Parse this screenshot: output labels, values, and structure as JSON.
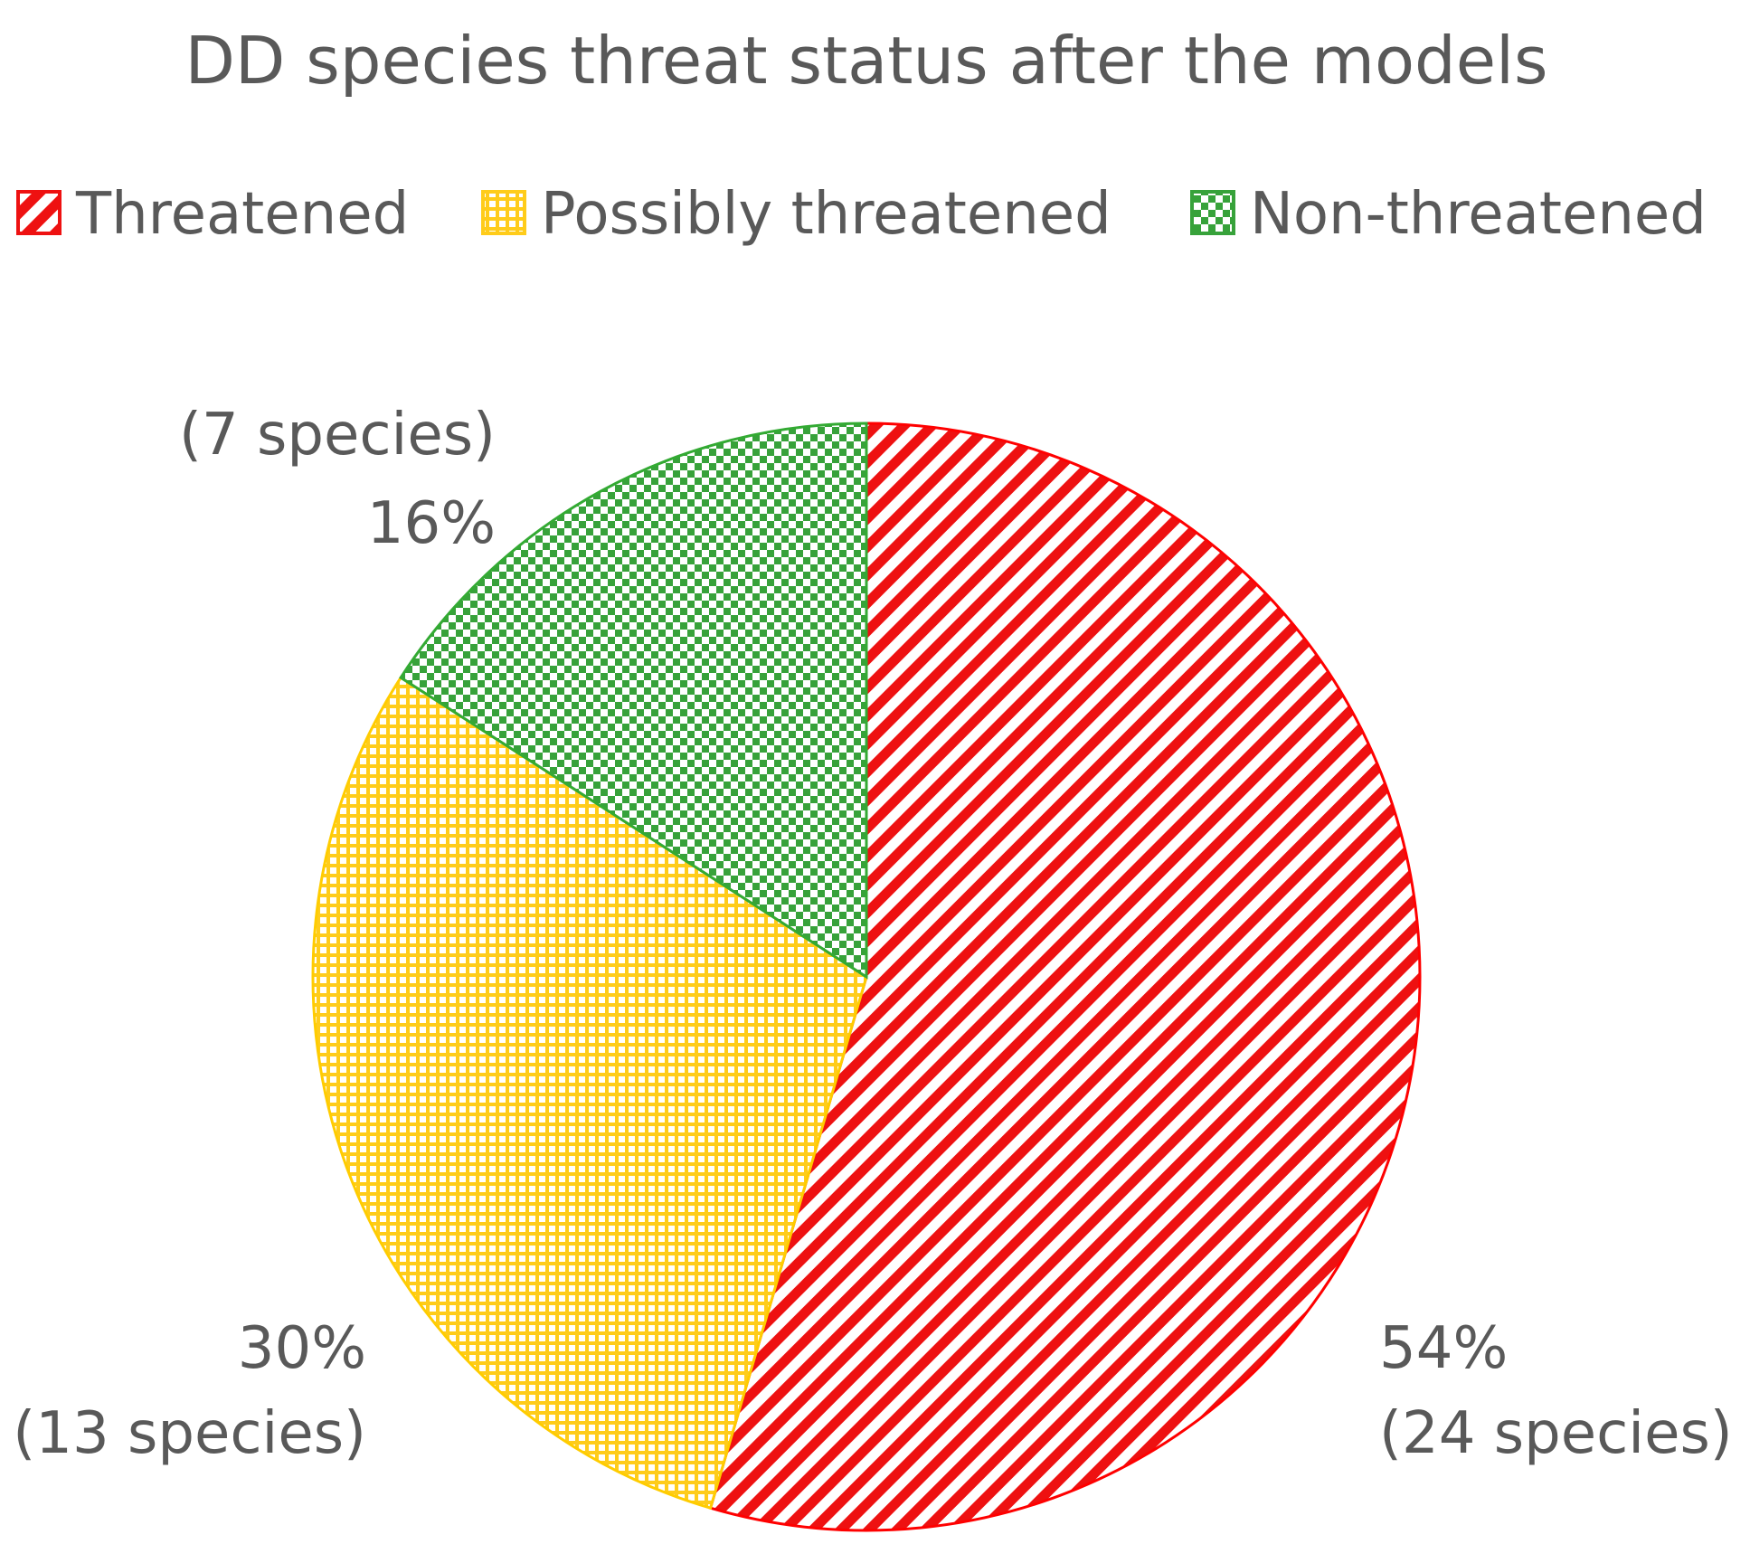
{
  "chart_data": {
    "type": "pie",
    "title": "DD species threat status after the models",
    "legend_position": "top",
    "categories": [
      "Threatened",
      "Possibly threatened",
      "Non-threatened"
    ],
    "values": [
      24,
      13,
      7
    ],
    "value_unit": "species",
    "percent_labels": [
      "54%",
      "30%",
      "16%"
    ],
    "count_labels": [
      "(24 species)",
      "(13 species)",
      "(7 species)"
    ],
    "colors": [
      "#ff0000",
      "#ffcc00",
      "#33aa33"
    ],
    "patterns": [
      "diagonal-stripes",
      "small-grid",
      "checkerboard"
    ],
    "start_angle_deg": 0,
    "direction": "clockwise"
  }
}
